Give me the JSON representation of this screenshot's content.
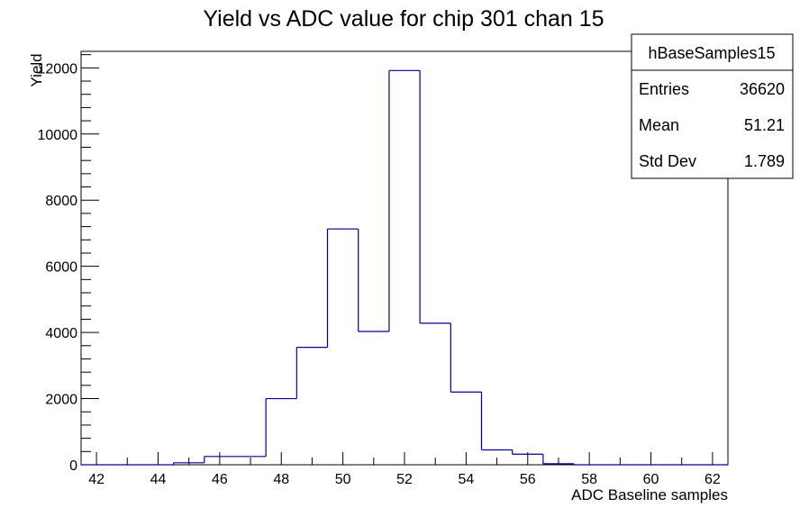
{
  "chart_data": {
    "type": "bar",
    "title": "Yield vs ADC value for chip 301 chan 15",
    "xlabel": "ADC Baseline samples",
    "ylabel": "Yield",
    "xlim": [
      41.5,
      62.5
    ],
    "ylim": [
      0,
      12500
    ],
    "x_ticks": [
      42,
      44,
      46,
      48,
      50,
      52,
      54,
      56,
      58,
      60,
      62
    ],
    "y_ticks": [
      0,
      2000,
      4000,
      6000,
      8000,
      10000,
      12000
    ],
    "x_tick_labels": [
      "42",
      "44",
      "46",
      "48",
      "50",
      "52",
      "54",
      "56",
      "58",
      "60",
      "62"
    ],
    "y_tick_labels": [
      "0",
      "2000",
      "4000",
      "6000",
      "8000",
      "10000",
      "12000"
    ],
    "bin_edges": [
      41.5,
      42.5,
      43.5,
      44.5,
      45.5,
      46.5,
      47.5,
      48.5,
      49.5,
      50.5,
      51.5,
      52.5,
      53.5,
      54.5,
      55.5,
      56.5,
      57.5,
      58.5,
      59.5,
      60.5,
      61.5,
      62.5
    ],
    "values": [
      0,
      0,
      0,
      60,
      250,
      250,
      2000,
      3550,
      7130,
      4030,
      11920,
      4280,
      2200,
      450,
      320,
      30,
      0,
      0,
      0,
      0,
      0
    ],
    "line_color": "#000099",
    "grid": false,
    "stats_box": {
      "name": "hBaseSamples15",
      "rows": [
        {
          "label": "Entries",
          "value": "36620"
        },
        {
          "label": "Mean",
          "value": "51.21"
        },
        {
          "label": "Std Dev",
          "value": "1.789"
        }
      ],
      "placement": "top-right"
    }
  }
}
